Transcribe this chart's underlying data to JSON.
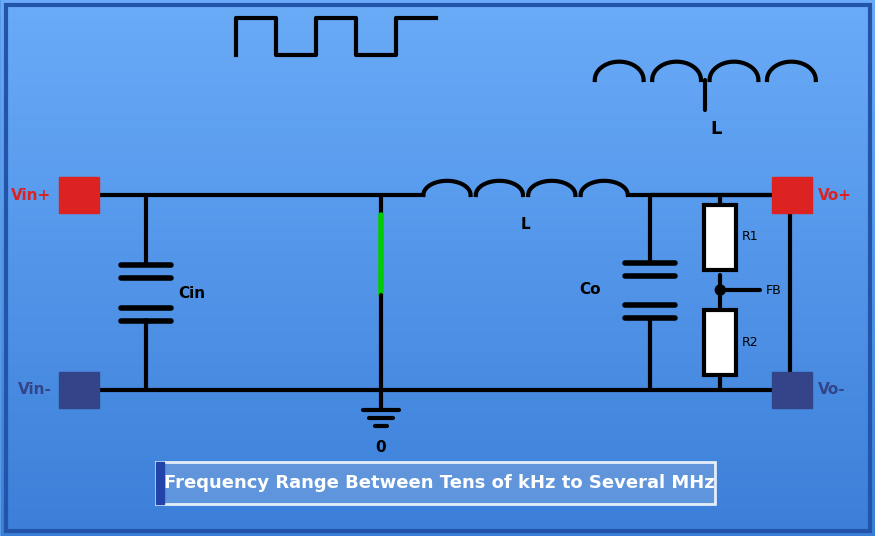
{
  "bg_color_top": "#5a9be8",
  "bg_color_bottom": "#4a8ee0",
  "border_color": "#2255aa",
  "line_color": "black",
  "line_width": 3.0,
  "red_color": "#dd2222",
  "blue_color": "#334488",
  "green_color": "#00cc00",
  "label_text": "Frequency Range Between Tens of kHz to Several MHz",
  "label_box_color": "#6699dd",
  "label_text_color": "white",
  "vin_plus_label": "Vin+",
  "vin_minus_label": "Vin-",
  "vo_plus_label": "Vo+",
  "vo_minus_label": "Vo-",
  "cin_label": "Cin",
  "co_label": "Co",
  "l_label": "L",
  "r1_label": "R1",
  "r2_label": "R2",
  "fb_label": "FB",
  "ground_label": "0"
}
